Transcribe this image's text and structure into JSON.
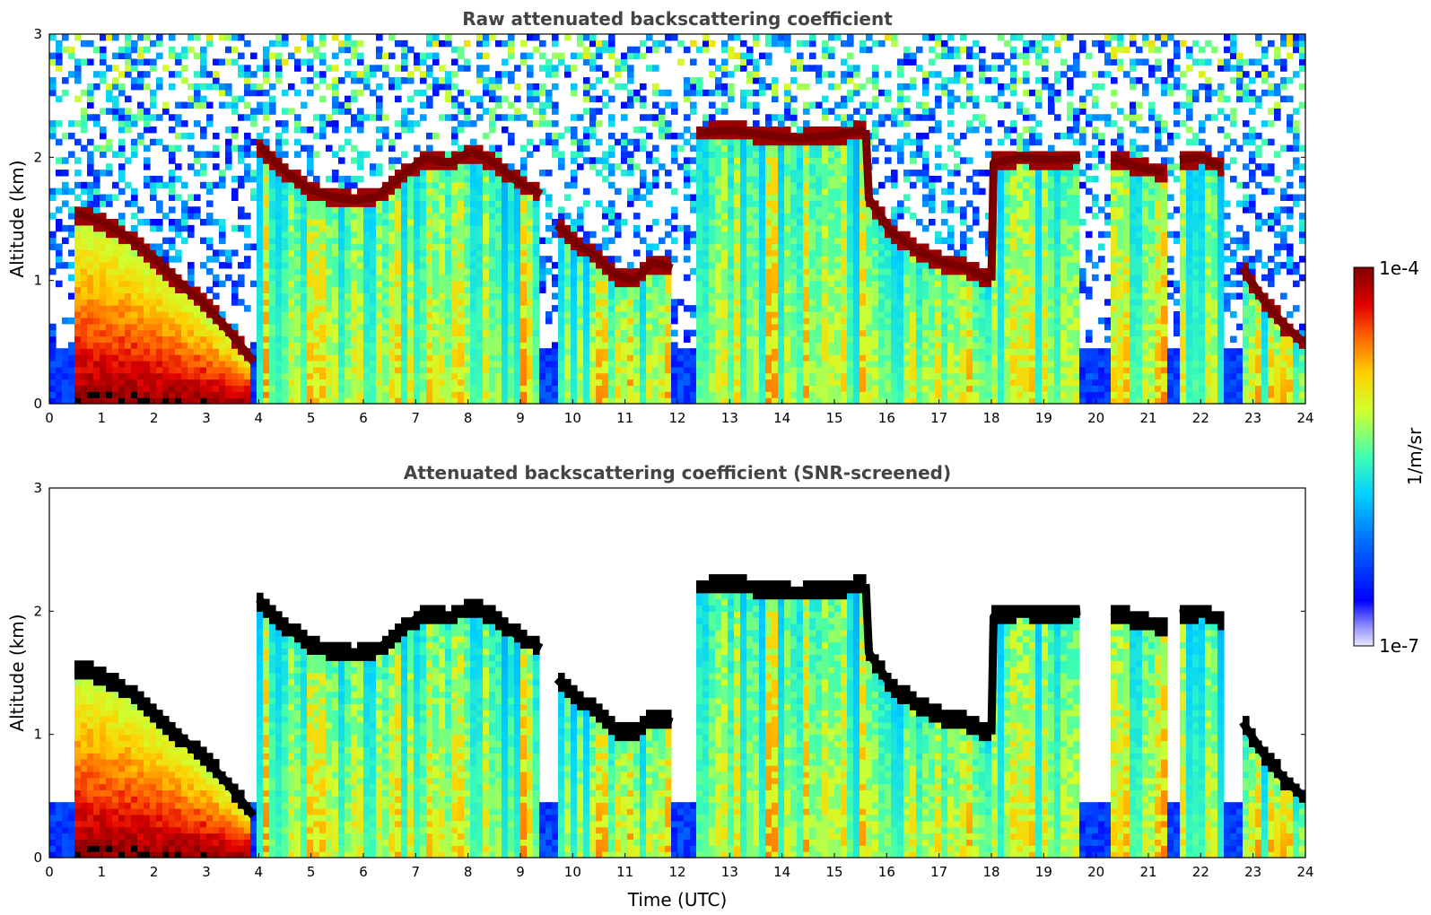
{
  "chart_data": [
    {
      "type": "heatmap",
      "title": "Raw attenuated backscattering coefficient",
      "xlabel": "",
      "ylabel": "Altitude (km)",
      "xlim": [
        0,
        24
      ],
      "ylim": [
        0,
        3
      ],
      "xticks": [
        "0",
        "1",
        "2",
        "3",
        "4",
        "5",
        "6",
        "7",
        "8",
        "9",
        "10",
        "11",
        "12",
        "13",
        "14",
        "15",
        "16",
        "17",
        "18",
        "19",
        "20",
        "21",
        "22",
        "23",
        "24"
      ],
      "yticks": [
        "0",
        "1",
        "2",
        "3"
      ],
      "screened": false,
      "cloud_base_km": [
        {
          "t0": 0.5,
          "t1": 3.9,
          "alt": [
            1.55,
            1.48,
            1.36,
            1.2,
            1.0,
            0.82,
            0.6,
            0.34
          ]
        },
        {
          "t0": 4.0,
          "t1": 6.3,
          "alt": [
            2.1,
            1.9,
            1.75,
            1.68,
            1.65,
            1.68
          ]
        },
        {
          "t0": 6.3,
          "t1": 9.4,
          "alt": [
            1.7,
            1.85,
            2.0,
            1.95,
            2.05,
            1.95,
            1.8,
            1.7
          ]
        },
        {
          "t0": 9.7,
          "t1": 11.9,
          "alt": [
            1.45,
            1.3,
            1.2,
            1.05,
            1.0,
            1.15,
            1.1
          ]
        },
        {
          "t0": 12.4,
          "t1": 15.6,
          "alt": [
            2.2,
            2.22,
            2.18,
            2.15,
            2.18,
            2.22
          ]
        },
        {
          "t0": 15.6,
          "t1": 18.0,
          "alt": [
            1.7,
            1.4,
            1.25,
            1.15,
            1.1,
            1.0
          ]
        },
        {
          "t0": 18.0,
          "t1": 19.7,
          "alt": [
            1.95,
            2.0,
            1.98,
            2.0
          ]
        },
        {
          "t0": 20.3,
          "t1": 21.3,
          "alt": [
            2.0,
            1.92,
            1.88
          ]
        },
        {
          "t0": 21.6,
          "t1": 22.4,
          "alt": [
            1.98,
            2.0,
            1.92
          ]
        },
        {
          "t0": 22.8,
          "t1": 23.95,
          "alt": [
            1.1,
            0.85,
            0.65,
            0.5
          ]
        }
      ]
    },
    {
      "type": "heatmap",
      "title": "Attenuated backscattering coefficient (SNR-screened)",
      "xlabel": "Time (UTC)",
      "ylabel": "Altitude (km)",
      "xlim": [
        0,
        24
      ],
      "ylim": [
        0,
        3
      ],
      "xticks": [
        "0",
        "1",
        "2",
        "3",
        "4",
        "5",
        "6",
        "7",
        "8",
        "9",
        "10",
        "11",
        "12",
        "13",
        "14",
        "15",
        "16",
        "17",
        "18",
        "19",
        "20",
        "21",
        "22",
        "23",
        "24"
      ],
      "yticks": [
        "0",
        "1",
        "2",
        "3"
      ],
      "screened": true
    }
  ],
  "colorbar": {
    "label": "1/m/sr",
    "max_label": "1e-4",
    "min_label": "1e-7",
    "scale": "log",
    "range": [
      1e-07,
      0.0001
    ]
  }
}
